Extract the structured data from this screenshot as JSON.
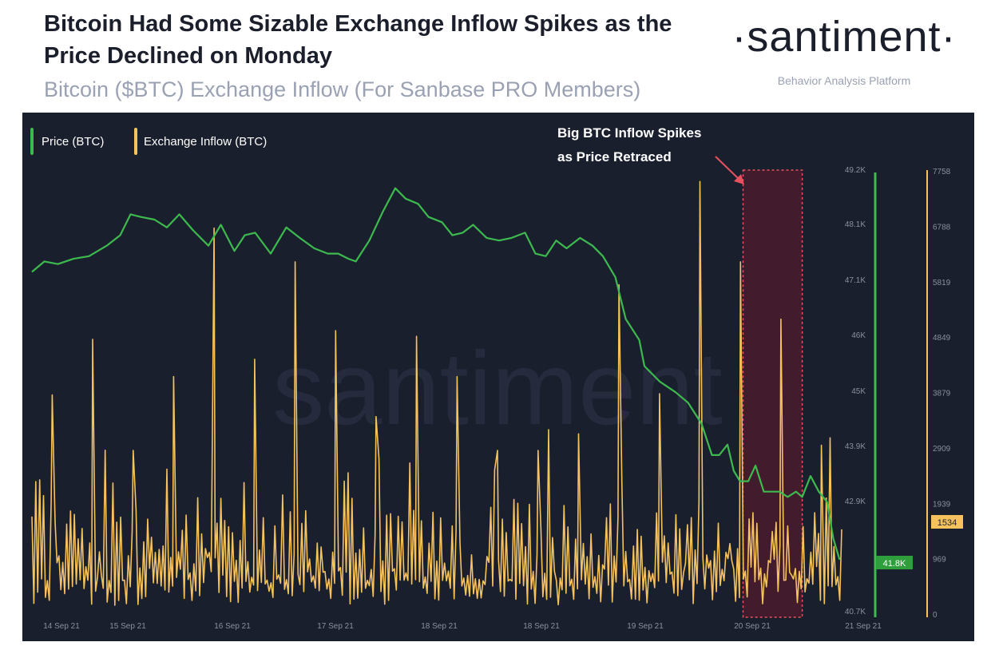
{
  "header": {
    "title": "Bitcoin Had Some Sizable Exchange Inflow Spikes as the Price Declined on Monday",
    "subtitle": "Bitcoin ($BTC) Exchange Inflow (For Sanbase PRO Members)"
  },
  "brand": {
    "name": "·santiment·",
    "tagline": "Behavior Analysis Platform",
    "watermark": "santiment"
  },
  "colors": {
    "price": "#3dba4e",
    "inflow": "#f5c25c",
    "highlight_fill": "#4a1b2c",
    "highlight_border": "#e8515f",
    "background": "#1a1f2e",
    "axis_text": "#8b90a0"
  },
  "chart_data": {
    "type": "line",
    "title": "Bitcoin ($BTC) Exchange Inflow (For Sanbase PRO Members)",
    "x_tick_labels": [
      "14 Sep 21",
      "15 Sep 21",
      "16 Sep 21",
      "17 Sep 21",
      "18 Sep 21",
      "18 Sep 21",
      "19 Sep 21",
      "20 Sep 21",
      "21 Sep 21"
    ],
    "legend": {
      "placement": "top-left",
      "entries": [
        "Price (BTC)",
        "Exchange Inflow (BTC)"
      ]
    },
    "price_axis": {
      "ticks": [
        "49.2K",
        "48.1K",
        "47.1K",
        "46K",
        "45K",
        "43.9K",
        "42.9K",
        "40.7K"
      ],
      "range": [
        40700,
        49200
      ],
      "current_label": "41.8K"
    },
    "inflow_axis": {
      "ticks": [
        "7758",
        "6788",
        "5819",
        "4849",
        "3879",
        "2909",
        "1939",
        "969",
        "0"
      ],
      "range": [
        0,
        7758
      ],
      "current_label": "1534"
    },
    "annotation": {
      "lines": [
        "Big BTC Inflow Spikes",
        "as Price Retraced"
      ],
      "highlight_range_days": [
        6.85,
        7.42
      ]
    },
    "series": [
      {
        "name": "Price (BTC)",
        "x_days": [
          0,
          0.12,
          0.25,
          0.4,
          0.55,
          0.72,
          0.85,
          0.95,
          1.05,
          1.18,
          1.3,
          1.42,
          1.55,
          1.7,
          1.82,
          1.95,
          2.05,
          2.15,
          2.3,
          2.45,
          2.58,
          2.72,
          2.85,
          2.95,
          3.05,
          3.12,
          3.25,
          3.38,
          3.5,
          3.6,
          3.72,
          3.82,
          3.95,
          4.05,
          4.15,
          4.25,
          4.38,
          4.5,
          4.62,
          4.75,
          4.85,
          4.95,
          5.05,
          5.15,
          5.28,
          5.4,
          5.5,
          5.62,
          5.72,
          5.85,
          5.9,
          6.05,
          6.2,
          6.32,
          6.45,
          6.55,
          6.62,
          6.7,
          6.76,
          6.82,
          6.9,
          6.97,
          7.05,
          7.12,
          7.2,
          7.28,
          7.36,
          7.42,
          7.5,
          7.58,
          7.66,
          7.72,
          7.78
        ],
        "values": [
          47300,
          47500,
          47450,
          47550,
          47600,
          47800,
          48000,
          48400,
          48350,
          48300,
          48150,
          48400,
          48100,
          47800,
          48200,
          47700,
          48000,
          48050,
          47650,
          48150,
          47950,
          47750,
          47650,
          47650,
          47550,
          47500,
          47900,
          48450,
          48900,
          48700,
          48600,
          48350,
          48250,
          48000,
          48050,
          48200,
          47950,
          47900,
          47950,
          48050,
          47650,
          47600,
          47900,
          47750,
          47950,
          47800,
          47600,
          47200,
          46400,
          46000,
          45500,
          45200,
          45000,
          44800,
          44400,
          43800,
          43800,
          44000,
          43500,
          43300,
          43300,
          43600,
          43100,
          43100,
          43100,
          43000,
          43100,
          43000,
          43400,
          43100,
          42900,
          42200,
          41800
        ]
      },
      {
        "name": "Exchange Inflow (BTC)",
        "peak_values": [
          3879,
          4849,
          2909,
          4200,
          6788,
          4500,
          6200,
          5000,
          3500,
          4900,
          4200,
          2909,
          2909,
          3200,
          5800,
          3900,
          7600,
          6200,
          5200,
          3000
        ],
        "current_value": 1534
      }
    ]
  }
}
